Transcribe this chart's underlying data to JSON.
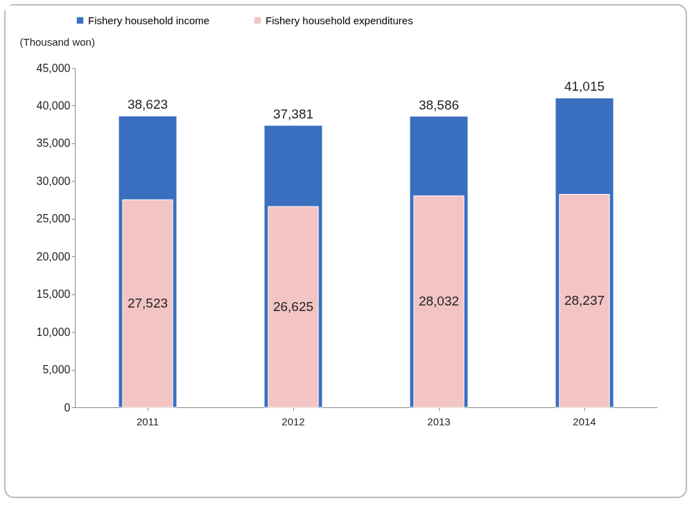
{
  "chart_data": {
    "type": "bar",
    "ylabel": "(Thousand won)",
    "categories": [
      "2011",
      "2012",
      "2013",
      "2014"
    ],
    "series": [
      {
        "name": "Fishery household income",
        "color": "#3a6fc0",
        "values": [
          38623,
          37381,
          38586,
          41015
        ],
        "value_labels": [
          "38,623",
          "37,381",
          "38,586",
          "41,015"
        ]
      },
      {
        "name": "Fishery household expenditures",
        "color": "#f2c4c4",
        "values": [
          27523,
          26625,
          28032,
          28237
        ],
        "value_labels": [
          "27,523",
          "26,625",
          "28,032",
          "28,237"
        ]
      }
    ],
    "ylim": [
      0,
      45000
    ],
    "yticks": [
      {
        "value": 0,
        "label": "0"
      },
      {
        "value": 5000,
        "label": "5,000"
      },
      {
        "value": 10000,
        "label": "10,000"
      },
      {
        "value": 15000,
        "label": "15,000"
      },
      {
        "value": 20000,
        "label": "20,000"
      },
      {
        "value": 25000,
        "label": "25,000"
      },
      {
        "value": 30000,
        "label": "30,000"
      },
      {
        "value": 35000,
        "label": "35,000"
      },
      {
        "value": 40000,
        "label": "40,000"
      },
      {
        "value": 45000,
        "label": "45,000"
      }
    ],
    "grid": false,
    "legend": "top"
  }
}
